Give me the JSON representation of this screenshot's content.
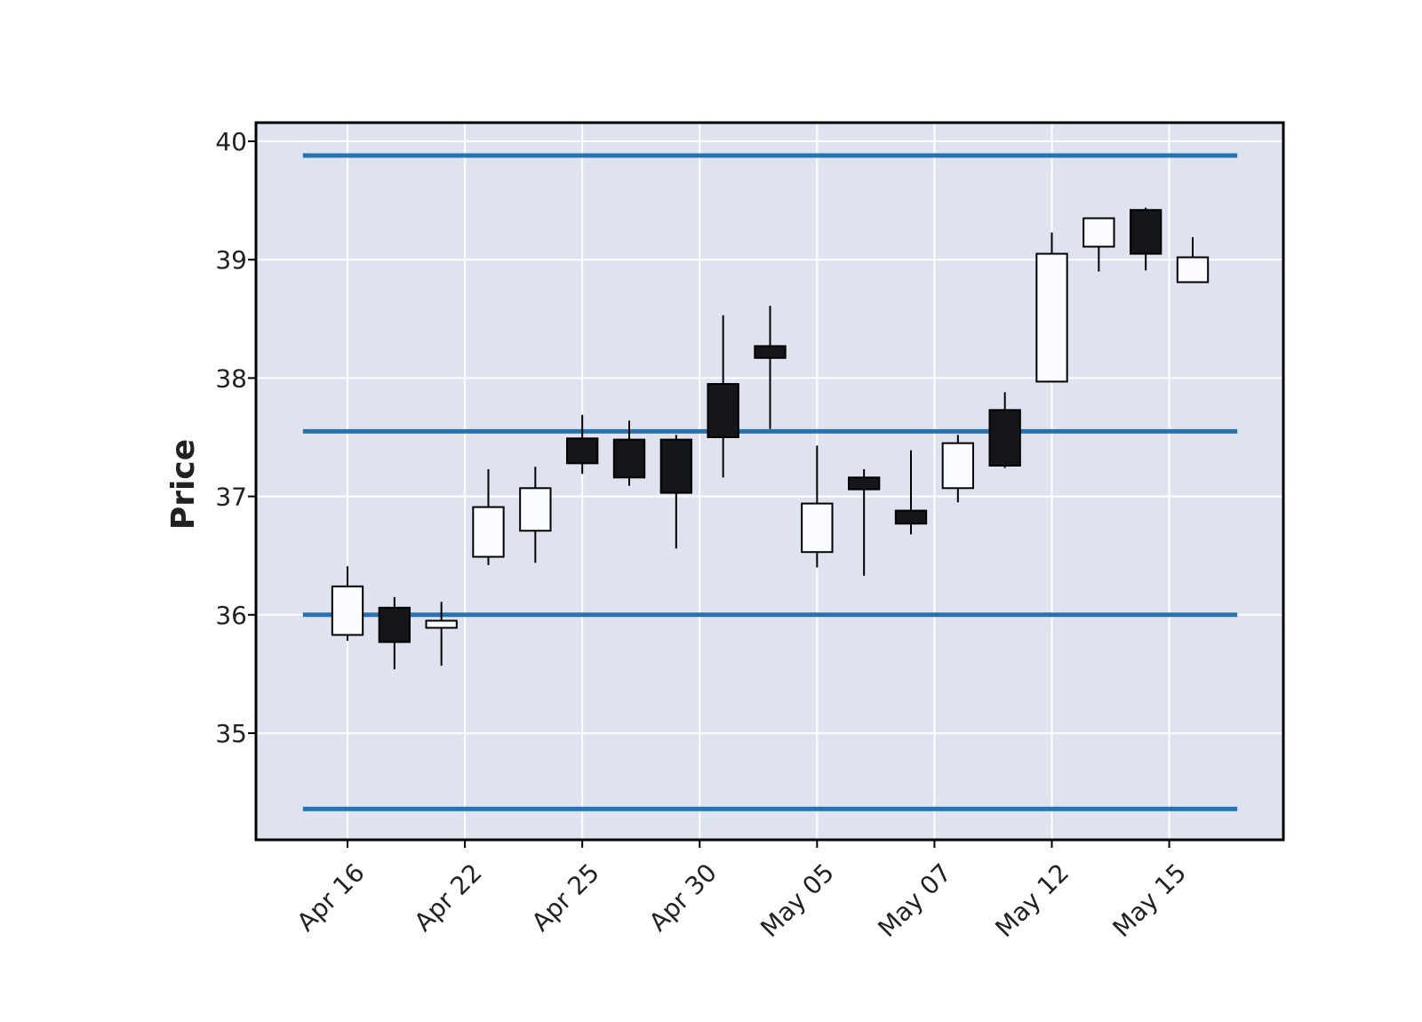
{
  "chart_data": {
    "type": "candlestick",
    "title": "",
    "xlabel": "",
    "ylabel": "Price",
    "ylim": [
      34.1,
      40.15
    ],
    "grid": true,
    "colors": {
      "background": "#dee3ef",
      "grid": "#ffffff",
      "up_body": "#fafcff",
      "down_body": "#15161a",
      "edge": "#000000",
      "hline": "#2474b4"
    },
    "xtick_labels": [
      {
        "label": "Apr 16",
        "index": 0
      },
      {
        "label": "Apr 22",
        "index": 2.5
      },
      {
        "label": "Apr 25",
        "index": 5
      },
      {
        "label": "Apr 30",
        "index": 7.5
      },
      {
        "label": "May 05",
        "index": 10
      },
      {
        "label": "May 07",
        "index": 12.5
      },
      {
        "label": "May 12",
        "index": 15
      },
      {
        "label": "May 15",
        "index": 17.5
      }
    ],
    "yticks": [
      35,
      36,
      37,
      38,
      39,
      40
    ],
    "hlines": [
      39.88,
      37.55,
      36.0,
      34.36
    ],
    "candles": [
      {
        "open": 35.83,
        "high": 36.41,
        "low": 35.78,
        "close": 36.24
      },
      {
        "open": 36.06,
        "high": 36.15,
        "low": 35.54,
        "close": 35.77
      },
      {
        "open": 35.89,
        "high": 36.11,
        "low": 35.57,
        "close": 35.95
      },
      {
        "open": 36.49,
        "high": 37.23,
        "low": 36.42,
        "close": 36.91
      },
      {
        "open": 36.71,
        "high": 37.25,
        "low": 36.44,
        "close": 37.07
      },
      {
        "open": 37.49,
        "high": 37.69,
        "low": 37.19,
        "close": 37.28
      },
      {
        "open": 37.48,
        "high": 37.64,
        "low": 37.09,
        "close": 37.16
      },
      {
        "open": 37.48,
        "high": 37.52,
        "low": 36.56,
        "close": 37.03
      },
      {
        "open": 37.95,
        "high": 38.53,
        "low": 37.16,
        "close": 37.5
      },
      {
        "open": 38.27,
        "high": 38.61,
        "low": 37.57,
        "close": 38.17
      },
      {
        "open": 36.53,
        "high": 37.43,
        "low": 36.4,
        "close": 36.94
      },
      {
        "open": 37.16,
        "high": 37.23,
        "low": 36.33,
        "close": 37.06
      },
      {
        "open": 36.88,
        "high": 37.39,
        "low": 36.68,
        "close": 36.77
      },
      {
        "open": 37.07,
        "high": 37.52,
        "low": 36.95,
        "close": 37.45
      },
      {
        "open": 37.73,
        "high": 37.88,
        "low": 37.24,
        "close": 37.26
      },
      {
        "open": 37.97,
        "high": 39.23,
        "low": 37.97,
        "close": 39.05
      },
      {
        "open": 39.11,
        "high": 39.35,
        "low": 38.9,
        "close": 39.35
      },
      {
        "open": 39.42,
        "high": 39.44,
        "low": 38.91,
        "close": 39.05
      },
      {
        "open": 38.81,
        "high": 39.19,
        "low": 38.81,
        "close": 39.02
      }
    ]
  }
}
